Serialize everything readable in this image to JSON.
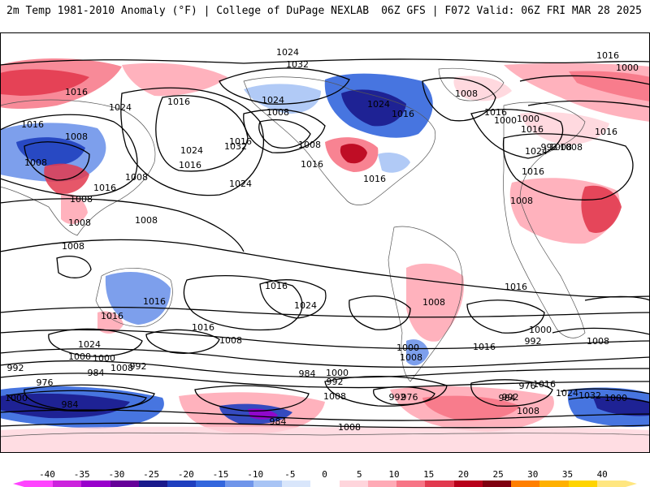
{
  "header": {
    "left": "2m Temp 1981-2010 Anomaly (°F) | College of DuPage NEXLAB",
    "right": "06Z GFS | F072 Valid: 06Z FRI MAR 28 2025"
  },
  "colorbar": {
    "labels": [
      "-40",
      "-35",
      "-30",
      "-25",
      "-20",
      "-15",
      "-10",
      "-5",
      "0",
      "5",
      "10",
      "15",
      "20",
      "25",
      "30",
      "35",
      "40"
    ],
    "colors": [
      "#ff44ff",
      "#cc22dd",
      "#9900cc",
      "#660099",
      "#1a1a8c",
      "#1f3fbf",
      "#3366dd",
      "#6f95ea",
      "#a8c4f5",
      "#d9e6fb",
      "#ffffff",
      "#ffd5dc",
      "#ffaab6",
      "#f77586",
      "#e23a4f",
      "#b8001a",
      "#7f0010",
      "#ff7f00",
      "#ffb000",
      "#ffd400",
      "#ffe680"
    ]
  },
  "map": {
    "contour_labels": [
      "1024",
      "1032",
      "1016",
      "1000",
      "1016",
      "1024",
      "1016",
      "1008",
      "1024",
      "1016",
      "1008",
      "1032",
      "1024",
      "1016",
      "1008",
      "1008",
      "992",
      "1000",
      "1016",
      "1024",
      "1016",
      "1008",
      "1016",
      "1024",
      "1008",
      "1016",
      "1000",
      "1008",
      "1016",
      "1016",
      "1008",
      "1008",
      "1016",
      "1008",
      "1016",
      "1024",
      "1016",
      "1008",
      "1008",
      "1016",
      "1024",
      "992",
      "1000",
      "1016",
      "1008",
      "1016",
      "1016",
      "1008",
      "1024",
      "1016",
      "1008",
      "1000",
      "992",
      "984",
      "976",
      "984",
      "1000",
      "1000",
      "984",
      "992",
      "1000",
      "1008",
      "984",
      "976",
      "992",
      "984",
      "976",
      "1016",
      "1024",
      "1032",
      "1000",
      "992",
      "1008",
      "1008",
      "992",
      "1008",
      "1016",
      "1008",
      "1000",
      "1008"
    ]
  }
}
